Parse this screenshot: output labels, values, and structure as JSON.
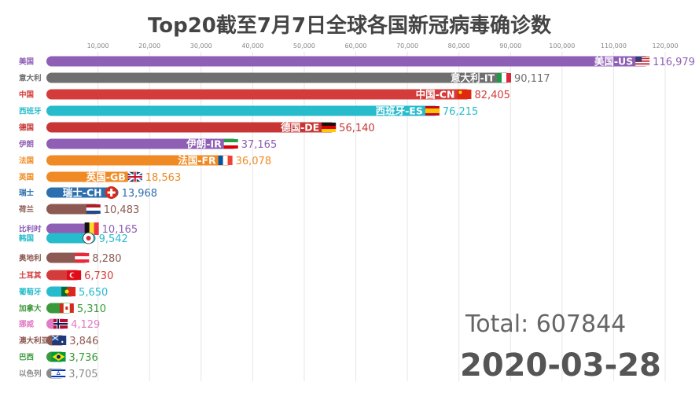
{
  "chart_data": {
    "type": "bar",
    "orientation": "horizontal",
    "title": "Top20截至7月7日全球各国新冠病毒确诊数",
    "xlim": [
      0,
      120000
    ],
    "x_ticks": [
      "10,000",
      "20,000",
      "30,000",
      "40,000",
      "50,000",
      "60,000",
      "70,000",
      "80,000",
      "90,000",
      "100,000",
      "110,000",
      "120,000"
    ],
    "tick_values": [
      10000,
      20000,
      30000,
      40000,
      50000,
      60000,
      70000,
      80000,
      90000,
      100000,
      110000,
      120000
    ],
    "grid": true,
    "bars": [
      {
        "country": "美国",
        "bar_label": "美国-US",
        "value": 116979,
        "value_label": "116,979",
        "color": "#8e5fb5",
        "flag": "us-flag"
      },
      {
        "country": "意大利",
        "bar_label": "意大利-IT",
        "value": 90117,
        "value_label": "90,117",
        "color": "#6f6f6f",
        "flag": "italy-flag"
      },
      {
        "country": "中国",
        "bar_label": "中国-CN",
        "value": 82405,
        "value_label": "82,405",
        "color": "#d33c3a",
        "flag": "china-flag"
      },
      {
        "country": "西班牙",
        "bar_label": "西班牙-ES",
        "value": 76215,
        "value_label": "76,215",
        "color": "#27bccc",
        "flag": "spain-flag"
      },
      {
        "country": "德国",
        "bar_label": "德国-DE",
        "value": 56140,
        "value_label": "56,140",
        "color": "#c73535",
        "flag": "germany-flag"
      },
      {
        "country": "伊朗",
        "bar_label": "伊朗-IR",
        "value": 37165,
        "value_label": "37,165",
        "color": "#8e5fb5",
        "flag": "iran-flag"
      },
      {
        "country": "法国",
        "bar_label": "法国-FR",
        "value": 36078,
        "value_label": "36,078",
        "color": "#f08a24",
        "flag": "france-flag"
      },
      {
        "country": "英国",
        "bar_label": "英国-GB",
        "value": 18563,
        "value_label": "18,563",
        "color": "#f08a24",
        "flag": "uk-flag"
      },
      {
        "country": "瑞士",
        "bar_label": "瑞士-CH",
        "value": 13968,
        "value_label": "13,968",
        "color": "#2d6fae",
        "flag": "swiss-flag"
      },
      {
        "country": "荷兰",
        "bar_label": "",
        "value": 10483,
        "value_label": "10,483",
        "color": "#8c5a52",
        "flag": "netherlands-flag"
      },
      {
        "country": "比利时",
        "bar_label": "",
        "value": 10165,
        "value_label": "10,165",
        "color": "#8e5fb5",
        "flag": "belgium-flag"
      },
      {
        "country": "韩国",
        "bar_label": "",
        "value": 9542,
        "value_label": "9,542",
        "color": "#27bccc",
        "flag": "korea-flag"
      },
      {
        "country": "奥地利",
        "bar_label": "",
        "value": 8280,
        "value_label": "8,280",
        "color": "#8c5a52",
        "flag": "austria-flag"
      },
      {
        "country": "土耳其",
        "bar_label": "",
        "value": 6730,
        "value_label": "6,730",
        "color": "#d33c3a",
        "flag": "turkey-flag"
      },
      {
        "country": "葡萄牙",
        "bar_label": "",
        "value": 5650,
        "value_label": "5,650",
        "color": "#27bccc",
        "flag": "portugal-flag"
      },
      {
        "country": "加拿大",
        "bar_label": "",
        "value": 5310,
        "value_label": "5,310",
        "color": "#3a9a3a",
        "flag": "canada-flag"
      },
      {
        "country": "挪威",
        "bar_label": "",
        "value": 4129,
        "value_label": "4,129",
        "color": "#e27bc6",
        "flag": "norway-flag"
      },
      {
        "country": "澳大利亚",
        "bar_label": "",
        "value": 3846,
        "value_label": "3,846",
        "color": "#8c5a52",
        "flag": "australia-flag"
      },
      {
        "country": "巴西",
        "bar_label": "",
        "value": 3736,
        "value_label": "3,736",
        "color": "#3a9a3a",
        "flag": "brazil-flag"
      },
      {
        "country": "以色列",
        "bar_label": "",
        "value": 3705,
        "value_label": "3,705",
        "color": "#8a8a8a",
        "flag": "israel-flag"
      }
    ]
  },
  "total_label": "Total:",
  "total_value": "607844",
  "date": "2020-03-28"
}
